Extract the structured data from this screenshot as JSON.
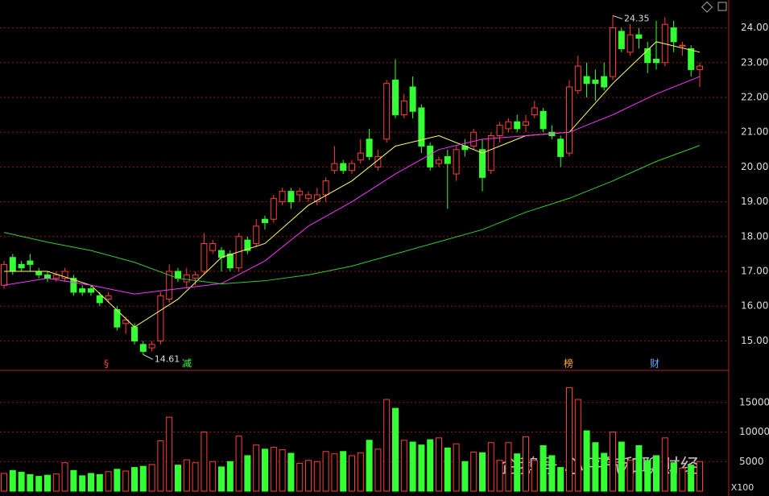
{
  "chart_data": {
    "type": "candlestick",
    "open": [
      16.6,
      17.4,
      17.2,
      17.3,
      17.0,
      16.9,
      16.8,
      16.8,
      16.8,
      16.5,
      16.5,
      16.3,
      16.2,
      15.9,
      15.5,
      15.4,
      14.9,
      14.8,
      15.0,
      16.2,
      17.0,
      16.7,
      16.8,
      17.0,
      17.6,
      17.6,
      17.5,
      17.1,
      17.9,
      17.8,
      18.5,
      18.5,
      19.0,
      19.3,
      19.2,
      19.1,
      19.0,
      19.2,
      19.9,
      20.1,
      19.9,
      20.2,
      20.8,
      20.0,
      20.8,
      22.5,
      21.5,
      22.3,
      21.7,
      20.6,
      20.1,
      20.3,
      19.8,
      20.6,
      20.6,
      20.5,
      19.9,
      20.9,
      21.1,
      21.3,
      21.2,
      21.5,
      21.6,
      21.0,
      20.8,
      20.4,
      22.2,
      22.6,
      22.5,
      22.6,
      22.6,
      23.9,
      23.3,
      23.8,
      23.4,
      23.1,
      23.0,
      24.0,
      23.5,
      23.4,
      22.8
    ],
    "high": [
      17.3,
      17.5,
      17.3,
      17.5,
      17.1,
      17.0,
      17.0,
      17.1,
      16.9,
      16.6,
      16.6,
      16.4,
      16.4,
      16.0,
      15.7,
      15.5,
      15.0,
      15.0,
      16.4,
      17.2,
      17.1,
      17.1,
      17.0,
      18.1,
      17.9,
      17.7,
      17.6,
      18.1,
      18.0,
      18.5,
      18.6,
      19.2,
      19.4,
      19.4,
      19.4,
      19.3,
      19.4,
      19.7,
      20.6,
      20.2,
      20.2,
      20.8,
      21.1,
      20.5,
      22.5,
      23.1,
      22.1,
      22.6,
      21.8,
      20.7,
      20.3,
      20.5,
      20.6,
      20.8,
      21.1,
      20.8,
      21.0,
      21.3,
      21.4,
      21.5,
      21.5,
      21.9,
      21.7,
      21.2,
      20.9,
      22.5,
      23.2,
      23.0,
      22.8,
      23.0,
      24.35,
      24.0,
      24.1,
      24.0,
      23.6,
      24.2,
      24.3,
      24.2,
      23.6,
      23.5,
      23.0
    ],
    "low": [
      16.5,
      16.9,
      17.0,
      17.0,
      16.8,
      16.7,
      16.7,
      16.7,
      16.3,
      16.3,
      16.3,
      16.0,
      16.1,
      15.3,
      15.2,
      14.9,
      14.61,
      14.7,
      14.9,
      16.1,
      16.7,
      16.5,
      16.6,
      16.9,
      17.5,
      17.0,
      17.0,
      17.0,
      17.5,
      17.7,
      18.2,
      18.4,
      18.9,
      18.8,
      19.0,
      19.0,
      18.9,
      19.0,
      19.8,
      19.8,
      19.8,
      20.1,
      20.2,
      19.9,
      20.7,
      21.4,
      21.4,
      21.4,
      20.4,
      19.9,
      20.0,
      18.8,
      19.6,
      20.3,
      20.5,
      19.3,
      19.8,
      20.7,
      21.0,
      21.0,
      21.0,
      21.4,
      21.0,
      20.8,
      20.0,
      20.3,
      22.1,
      22.0,
      21.9,
      22.2,
      22.5,
      23.3,
      23.2,
      23.4,
      22.7,
      22.8,
      22.9,
      23.3,
      23.2,
      22.6,
      22.3
    ],
    "close": [
      17.2,
      17.0,
      17.1,
      17.2,
      16.9,
      16.8,
      16.9,
      17.0,
      16.4,
      16.4,
      16.4,
      16.1,
      16.3,
      15.4,
      15.6,
      15.0,
      14.7,
      14.9,
      16.3,
      17.0,
      16.8,
      16.9,
      16.9,
      17.8,
      17.8,
      17.4,
      17.1,
      18.0,
      17.6,
      18.3,
      18.4,
      19.1,
      19.3,
      19.0,
      19.3,
      19.2,
      19.2,
      19.6,
      20.1,
      19.9,
      20.1,
      20.4,
      20.3,
      20.3,
      22.4,
      21.5,
      21.9,
      21.6,
      20.6,
      20.0,
      20.2,
      20.1,
      20.5,
      20.5,
      21.0,
      19.7,
      20.9,
      21.2,
      21.3,
      21.1,
      21.3,
      21.7,
      21.1,
      20.9,
      20.3,
      22.3,
      22.9,
      22.4,
      22.4,
      22.3,
      24.0,
      23.4,
      23.8,
      23.7,
      23.0,
      23.0,
      24.1,
      23.6,
      23.5,
      22.8,
      22.9
    ],
    "volume": [
      3000,
      3500,
      3200,
      2800,
      2500,
      2700,
      2900,
      4800,
      3500,
      2600,
      3000,
      2800,
      3300,
      3700,
      3400,
      4000,
      4200,
      4500,
      8500,
      12500,
      4400,
      5300,
      4800,
      10000,
      5000,
      4100,
      5000,
      9300,
      6000,
      7800,
      7100,
      7400,
      7000,
      6400,
      4700,
      5200,
      5000,
      6700,
      6300,
      6700,
      6000,
      6500,
      8600,
      7100,
      15500,
      14000,
      8600,
      8300,
      7800,
      8700,
      9000,
      7300,
      8000,
      5000,
      6600,
      6500,
      8200,
      5200,
      8200,
      6300,
      9200,
      5200,
      7700,
      6000,
      4000,
      17500,
      15500,
      10200,
      8200,
      6400,
      10000,
      8300,
      5200,
      7700,
      5200,
      6000,
      9000,
      4800,
      3900,
      4400,
      5000
    ],
    "up_color": "#ff3c3c",
    "down_color": "#33ff33",
    "series": [
      {
        "color": "#ffff66",
        "x": [
          0,
          5,
          10,
          15,
          20,
          25,
          30,
          35,
          40,
          45,
          50,
          55,
          60,
          65,
          70,
          75,
          80
        ],
        "values": [
          17.0,
          17.0,
          16.6,
          15.4,
          16.2,
          17.4,
          17.8,
          18.9,
          19.6,
          20.6,
          20.9,
          20.4,
          20.9,
          21.0,
          22.4,
          23.6,
          23.3
        ]
      },
      {
        "color": "#ff33ff",
        "x": [
          0,
          5,
          10,
          15,
          20,
          25,
          30,
          35,
          40,
          45,
          50,
          55,
          60,
          65,
          70,
          75,
          80
        ],
        "values": [
          16.6,
          16.8,
          16.6,
          16.35,
          16.5,
          16.65,
          17.3,
          18.3,
          19.0,
          19.8,
          20.5,
          20.8,
          20.9,
          21.0,
          21.5,
          22.1,
          22.6
        ]
      },
      {
        "color": "#33cc33",
        "x": [
          0,
          5,
          10,
          15,
          20,
          25,
          30,
          35,
          40,
          45,
          50,
          55,
          60,
          65,
          70,
          75,
          80
        ],
        "values": [
          18.12,
          17.84,
          17.6,
          17.26,
          16.8,
          16.64,
          16.73,
          16.9,
          17.15,
          17.5,
          17.85,
          18.2,
          18.7,
          19.1,
          19.6,
          20.16,
          20.62
        ]
      }
    ],
    "ylim": [
      14.2,
      24.8
    ],
    "yticks": [
      {
        "value": 15,
        "label": "15.00"
      },
      {
        "value": 16,
        "label": "16.00"
      },
      {
        "value": 17,
        "label": "17.00"
      },
      {
        "value": 18,
        "label": "18.00"
      },
      {
        "value": 19,
        "label": "19.00"
      },
      {
        "value": 20,
        "label": "20.00"
      },
      {
        "value": 21,
        "label": "21.00"
      },
      {
        "value": 22,
        "label": "22.00"
      },
      {
        "value": 23,
        "label": "23.00"
      },
      {
        "value": 24,
        "label": "24.00"
      }
    ],
    "y2lim": [
      0,
      20000
    ],
    "y2ticks": [
      5000,
      10000,
      15000
    ],
    "signals": [
      "§",
      "减",
      "榜",
      "财"
    ],
    "unit_label": "X100",
    "watermark": "企鹅号 心平气和聊财经",
    "grid": true
  }
}
